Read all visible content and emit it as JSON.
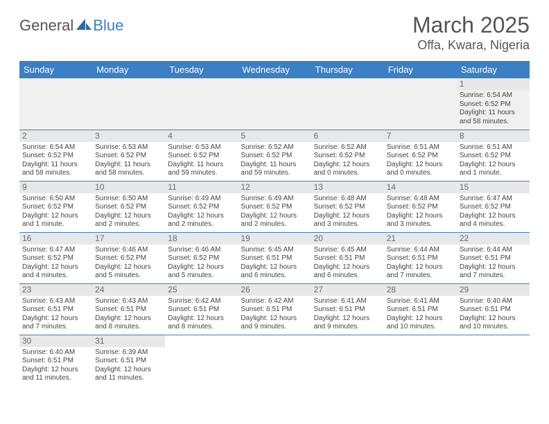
{
  "logo": {
    "part1": "General",
    "part2": "Blue"
  },
  "title": "March 2025",
  "location": "Offa, Kwara, Nigeria",
  "headerColor": "#3b7fc4",
  "dayHeaders": [
    "Sunday",
    "Monday",
    "Tuesday",
    "Wednesday",
    "Thursday",
    "Friday",
    "Saturday"
  ],
  "weeks": [
    [
      {
        "n": "",
        "sr": "",
        "ss": "",
        "d1": "",
        "d2": ""
      },
      {
        "n": "",
        "sr": "",
        "ss": "",
        "d1": "",
        "d2": ""
      },
      {
        "n": "",
        "sr": "",
        "ss": "",
        "d1": "",
        "d2": ""
      },
      {
        "n": "",
        "sr": "",
        "ss": "",
        "d1": "",
        "d2": ""
      },
      {
        "n": "",
        "sr": "",
        "ss": "",
        "d1": "",
        "d2": ""
      },
      {
        "n": "",
        "sr": "",
        "ss": "",
        "d1": "",
        "d2": ""
      },
      {
        "n": "1",
        "sr": "Sunrise: 6:54 AM",
        "ss": "Sunset: 6:52 PM",
        "d1": "Daylight: 11 hours",
        "d2": "and 58 minutes."
      }
    ],
    [
      {
        "n": "2",
        "sr": "Sunrise: 6:54 AM",
        "ss": "Sunset: 6:52 PM",
        "d1": "Daylight: 11 hours",
        "d2": "and 58 minutes."
      },
      {
        "n": "3",
        "sr": "Sunrise: 6:53 AM",
        "ss": "Sunset: 6:52 PM",
        "d1": "Daylight: 11 hours",
        "d2": "and 58 minutes."
      },
      {
        "n": "4",
        "sr": "Sunrise: 6:53 AM",
        "ss": "Sunset: 6:52 PM",
        "d1": "Daylight: 11 hours",
        "d2": "and 59 minutes."
      },
      {
        "n": "5",
        "sr": "Sunrise: 6:52 AM",
        "ss": "Sunset: 6:52 PM",
        "d1": "Daylight: 11 hours",
        "d2": "and 59 minutes."
      },
      {
        "n": "6",
        "sr": "Sunrise: 6:52 AM",
        "ss": "Sunset: 6:52 PM",
        "d1": "Daylight: 12 hours",
        "d2": "and 0 minutes."
      },
      {
        "n": "7",
        "sr": "Sunrise: 6:51 AM",
        "ss": "Sunset: 6:52 PM",
        "d1": "Daylight: 12 hours",
        "d2": "and 0 minutes."
      },
      {
        "n": "8",
        "sr": "Sunrise: 6:51 AM",
        "ss": "Sunset: 6:52 PM",
        "d1": "Daylight: 12 hours",
        "d2": "and 1 minute."
      }
    ],
    [
      {
        "n": "9",
        "sr": "Sunrise: 6:50 AM",
        "ss": "Sunset: 6:52 PM",
        "d1": "Daylight: 12 hours",
        "d2": "and 1 minute."
      },
      {
        "n": "10",
        "sr": "Sunrise: 6:50 AM",
        "ss": "Sunset: 6:52 PM",
        "d1": "Daylight: 12 hours",
        "d2": "and 2 minutes."
      },
      {
        "n": "11",
        "sr": "Sunrise: 6:49 AM",
        "ss": "Sunset: 6:52 PM",
        "d1": "Daylight: 12 hours",
        "d2": "and 2 minutes."
      },
      {
        "n": "12",
        "sr": "Sunrise: 6:49 AM",
        "ss": "Sunset: 6:52 PM",
        "d1": "Daylight: 12 hours",
        "d2": "and 2 minutes."
      },
      {
        "n": "13",
        "sr": "Sunrise: 6:48 AM",
        "ss": "Sunset: 6:52 PM",
        "d1": "Daylight: 12 hours",
        "d2": "and 3 minutes."
      },
      {
        "n": "14",
        "sr": "Sunrise: 6:48 AM",
        "ss": "Sunset: 6:52 PM",
        "d1": "Daylight: 12 hours",
        "d2": "and 3 minutes."
      },
      {
        "n": "15",
        "sr": "Sunrise: 6:47 AM",
        "ss": "Sunset: 6:52 PM",
        "d1": "Daylight: 12 hours",
        "d2": "and 4 minutes."
      }
    ],
    [
      {
        "n": "16",
        "sr": "Sunrise: 6:47 AM",
        "ss": "Sunset: 6:52 PM",
        "d1": "Daylight: 12 hours",
        "d2": "and 4 minutes."
      },
      {
        "n": "17",
        "sr": "Sunrise: 6:46 AM",
        "ss": "Sunset: 6:52 PM",
        "d1": "Daylight: 12 hours",
        "d2": "and 5 minutes."
      },
      {
        "n": "18",
        "sr": "Sunrise: 6:46 AM",
        "ss": "Sunset: 6:52 PM",
        "d1": "Daylight: 12 hours",
        "d2": "and 5 minutes."
      },
      {
        "n": "19",
        "sr": "Sunrise: 6:45 AM",
        "ss": "Sunset: 6:51 PM",
        "d1": "Daylight: 12 hours",
        "d2": "and 6 minutes."
      },
      {
        "n": "20",
        "sr": "Sunrise: 6:45 AM",
        "ss": "Sunset: 6:51 PM",
        "d1": "Daylight: 12 hours",
        "d2": "and 6 minutes."
      },
      {
        "n": "21",
        "sr": "Sunrise: 6:44 AM",
        "ss": "Sunset: 6:51 PM",
        "d1": "Daylight: 12 hours",
        "d2": "and 7 minutes."
      },
      {
        "n": "22",
        "sr": "Sunrise: 6:44 AM",
        "ss": "Sunset: 6:51 PM",
        "d1": "Daylight: 12 hours",
        "d2": "and 7 minutes."
      }
    ],
    [
      {
        "n": "23",
        "sr": "Sunrise: 6:43 AM",
        "ss": "Sunset: 6:51 PM",
        "d1": "Daylight: 12 hours",
        "d2": "and 7 minutes."
      },
      {
        "n": "24",
        "sr": "Sunrise: 6:43 AM",
        "ss": "Sunset: 6:51 PM",
        "d1": "Daylight: 12 hours",
        "d2": "and 8 minutes."
      },
      {
        "n": "25",
        "sr": "Sunrise: 6:42 AM",
        "ss": "Sunset: 6:51 PM",
        "d1": "Daylight: 12 hours",
        "d2": "and 8 minutes."
      },
      {
        "n": "26",
        "sr": "Sunrise: 6:42 AM",
        "ss": "Sunset: 6:51 PM",
        "d1": "Daylight: 12 hours",
        "d2": "and 9 minutes."
      },
      {
        "n": "27",
        "sr": "Sunrise: 6:41 AM",
        "ss": "Sunset: 6:51 PM",
        "d1": "Daylight: 12 hours",
        "d2": "and 9 minutes."
      },
      {
        "n": "28",
        "sr": "Sunrise: 6:41 AM",
        "ss": "Sunset: 6:51 PM",
        "d1": "Daylight: 12 hours",
        "d2": "and 10 minutes."
      },
      {
        "n": "29",
        "sr": "Sunrise: 6:40 AM",
        "ss": "Sunset: 6:51 PM",
        "d1": "Daylight: 12 hours",
        "d2": "and 10 minutes."
      }
    ],
    [
      {
        "n": "30",
        "sr": "Sunrise: 6:40 AM",
        "ss": "Sunset: 6:51 PM",
        "d1": "Daylight: 12 hours",
        "d2": "and 11 minutes."
      },
      {
        "n": "31",
        "sr": "Sunrise: 6:39 AM",
        "ss": "Sunset: 6:51 PM",
        "d1": "Daylight: 12 hours",
        "d2": "and 11 minutes."
      },
      {
        "n": "",
        "sr": "",
        "ss": "",
        "d1": "",
        "d2": ""
      },
      {
        "n": "",
        "sr": "",
        "ss": "",
        "d1": "",
        "d2": ""
      },
      {
        "n": "",
        "sr": "",
        "ss": "",
        "d1": "",
        "d2": ""
      },
      {
        "n": "",
        "sr": "",
        "ss": "",
        "d1": "",
        "d2": ""
      },
      {
        "n": "",
        "sr": "",
        "ss": "",
        "d1": "",
        "d2": ""
      }
    ]
  ]
}
